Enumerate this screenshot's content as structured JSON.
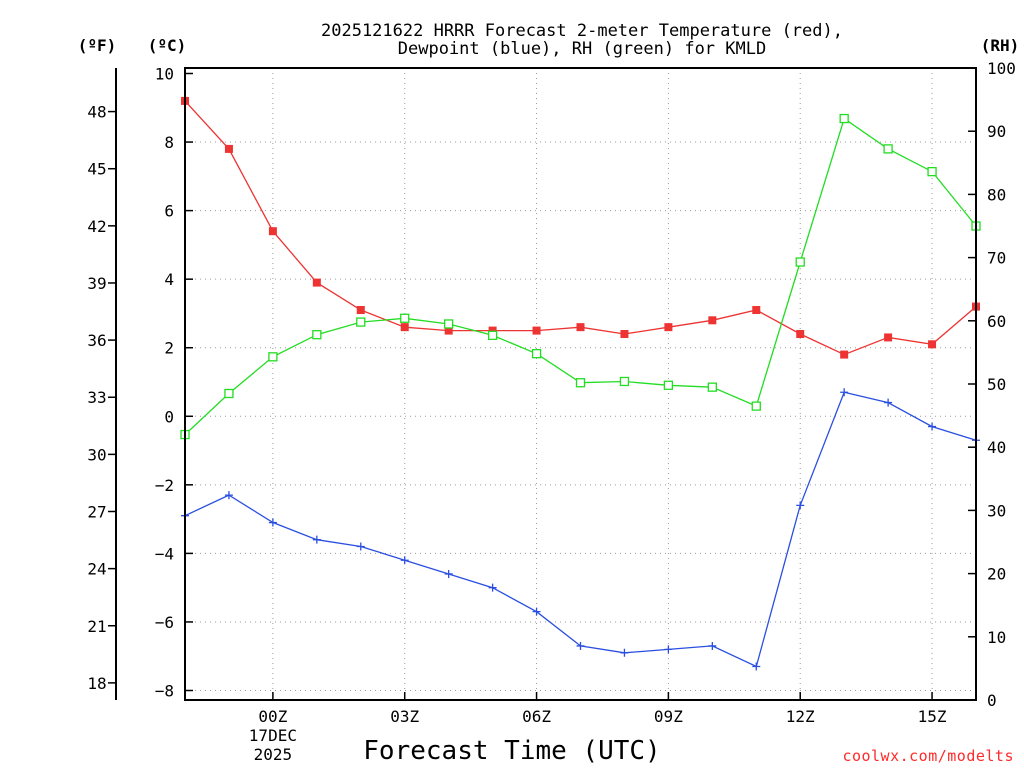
{
  "chart_data": {
    "type": "line",
    "title_line1": "2025121622 HRRR Forecast 2-meter Temperature (red),",
    "title_line2": "Dewpoint (blue), RH (green) for KMLD",
    "xlabel": "Forecast Time (UTC)",
    "credit": "coolwx.com/modelts",
    "units": {
      "fahrenheit": "(ºF)",
      "celsius": "(ºC)",
      "rh": "(RH)"
    },
    "x_hours": [
      -2,
      -1,
      0,
      1,
      2,
      3,
      4,
      5,
      6,
      7,
      8,
      9,
      10,
      11,
      12,
      13,
      14,
      15,
      16
    ],
    "x_ticks": [
      {
        "hour": 0,
        "label": "00Z",
        "sub1": "17DEC",
        "sub2": "2025"
      },
      {
        "hour": 3,
        "label": "03Z"
      },
      {
        "hour": 6,
        "label": "06Z"
      },
      {
        "hour": 9,
        "label": "09Z"
      },
      {
        "hour": 12,
        "label": "12Z"
      },
      {
        "hour": 15,
        "label": "15Z"
      }
    ],
    "xlim": [
      -2,
      16
    ],
    "celsius_ticks": [
      "10",
      "8",
      "6",
      "4",
      "2",
      "0",
      "−2",
      "−4",
      "−6",
      "−8"
    ],
    "celsius_tick_values": [
      10,
      8,
      6,
      4,
      2,
      0,
      -2,
      -4,
      -6,
      -8
    ],
    "ylim_celsius": [
      -8.5,
      10.2
    ],
    "fahrenheit_ticks": [
      "48",
      "45",
      "42",
      "39",
      "36",
      "33",
      "30",
      "27",
      "24",
      "21",
      "18"
    ],
    "fahrenheit_tick_values": [
      48,
      45,
      42,
      39,
      36,
      33,
      30,
      27,
      24,
      21,
      18
    ],
    "rh_ticks": [
      "100",
      "90",
      "80",
      "70",
      "60",
      "50",
      "40",
      "30",
      "20",
      "10",
      "0"
    ],
    "rh_tick_values": [
      100,
      90,
      80,
      70,
      60,
      50,
      40,
      30,
      20,
      10,
      0
    ],
    "ylim_rh": [
      0,
      100
    ],
    "series": [
      {
        "name": "Temperature",
        "axis": "celsius",
        "color": "#ee3333",
        "marker": "filled-square",
        "values": [
          9.2,
          7.8,
          5.4,
          3.9,
          3.1,
          2.6,
          2.5,
          2.5,
          2.5,
          2.6,
          2.4,
          2.6,
          2.8,
          3.1,
          2.4,
          1.8,
          2.3,
          2.1,
          3.2
        ]
      },
      {
        "name": "Dewpoint",
        "axis": "celsius",
        "color": "#2a4fe0",
        "marker": "plus",
        "values": [
          -2.9,
          -2.3,
          -3.1,
          -3.6,
          -3.8,
          -4.2,
          -4.6,
          -5.0,
          -5.7,
          -6.7,
          -6.9,
          -6.8,
          -6.7,
          -7.3,
          -2.6,
          0.7,
          0.4,
          -0.3,
          -0.7
        ]
      },
      {
        "name": "RH",
        "axis": "rh",
        "color": "#22dd22",
        "marker": "open-square",
        "values": [
          42,
          48.5,
          54.3,
          57.8,
          59.8,
          60.4,
          59.5,
          57.7,
          54.8,
          50.2,
          50.4,
          49.8,
          49.5,
          46.5,
          69.3,
          92,
          87.2,
          83.6,
          75
        ]
      }
    ]
  }
}
